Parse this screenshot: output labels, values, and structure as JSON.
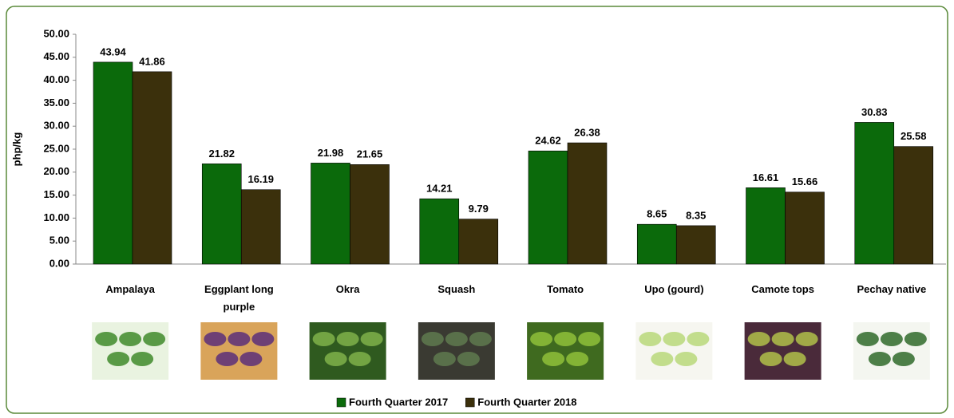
{
  "chart_data": {
    "type": "bar",
    "y_label": "php/kg",
    "categories": [
      "Ampalaya",
      "Eggplant long purple",
      "Okra",
      "Squash",
      "Tomato",
      "Upo (gourd)",
      "Camote tops",
      "Pechay native"
    ],
    "series": [
      {
        "name": "Fourth Quarter 2017",
        "color": "#0b6a0b",
        "values": [
          43.94,
          21.82,
          21.98,
          14.21,
          24.62,
          8.65,
          16.61,
          30.83
        ]
      },
      {
        "name": "Fourth Quarter 2018",
        "color": "#3b300c",
        "values": [
          41.86,
          16.19,
          21.65,
          9.79,
          26.38,
          8.35,
          15.66,
          25.58
        ]
      }
    ],
    "ylim": [
      0,
      50
    ],
    "yticks": [
      {
        "value": 0,
        "label": "0.00"
      },
      {
        "value": 5,
        "label": "5.00"
      },
      {
        "value": 10,
        "label": "10.00"
      },
      {
        "value": 15,
        "label": "15.00"
      },
      {
        "value": 20,
        "label": "20.00"
      },
      {
        "value": 25,
        "label": "25.00"
      },
      {
        "value": 30,
        "label": "30.00"
      },
      {
        "value": 35,
        "label": "35.00"
      },
      {
        "value": 40,
        "label": "40.00"
      },
      {
        "value": 45,
        "label": "45.00"
      },
      {
        "value": 50,
        "label": "50.00"
      }
    ],
    "legend": "bottom"
  }
}
